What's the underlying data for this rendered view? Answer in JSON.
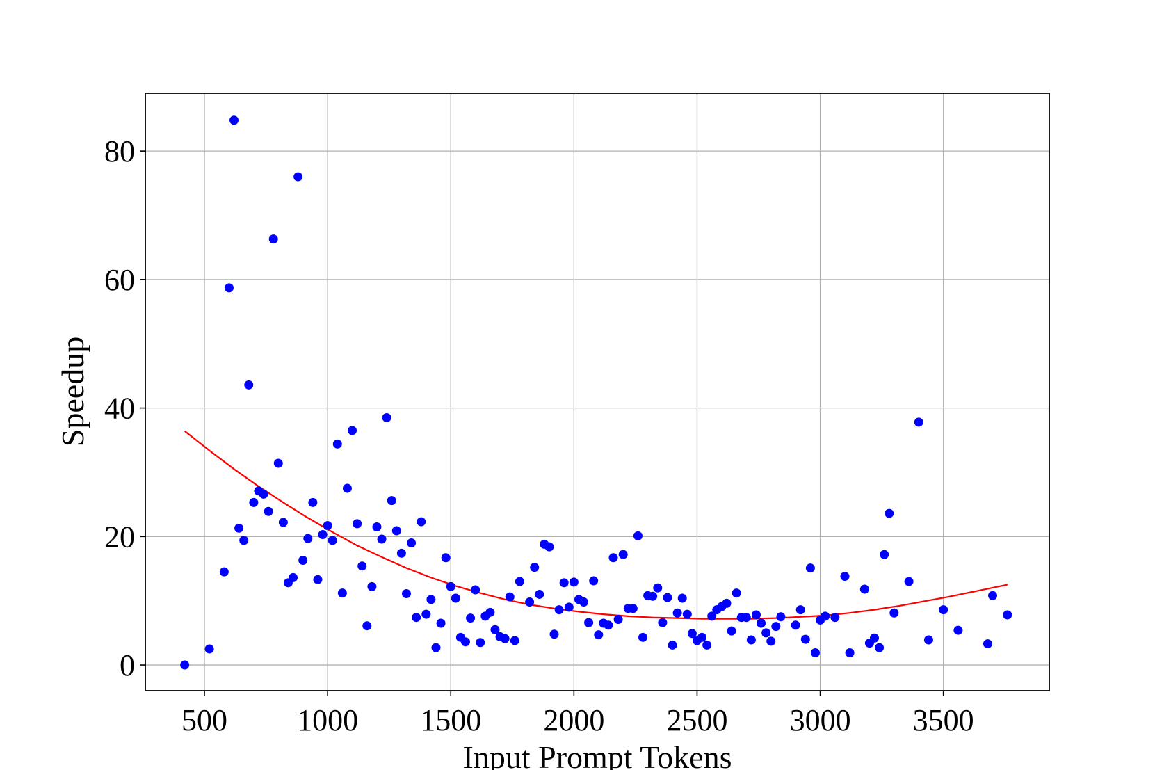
{
  "chart_data": {
    "type": "scatter",
    "xlabel": "Input Prompt Tokens",
    "ylabel": "Speedup",
    "xlim": [
      260,
      3930
    ],
    "ylim": [
      -4,
      89
    ],
    "xticks": [
      500,
      1000,
      1500,
      2000,
      2500,
      3000,
      3500
    ],
    "yticks": [
      0,
      20,
      40,
      60,
      80
    ],
    "xtick_labels": [
      "500",
      "1000",
      "1500",
      "2000",
      "2500",
      "3000",
      "3500"
    ],
    "ytick_labels": [
      "0",
      "20",
      "40",
      "60",
      "80"
    ],
    "grid": true,
    "legend": "none",
    "series": [
      {
        "type": "scatter",
        "color": "#0000ff",
        "points": [
          [
            420,
            0
          ],
          [
            520,
            2.5
          ],
          [
            580,
            14.5
          ],
          [
            600,
            58.7
          ],
          [
            620,
            84.8
          ],
          [
            640,
            21.3
          ],
          [
            660,
            19.4
          ],
          [
            680,
            43.6
          ],
          [
            700,
            25.3
          ],
          [
            720,
            27.1
          ],
          [
            740,
            26.6
          ],
          [
            760,
            23.9
          ],
          [
            780,
            66.3
          ],
          [
            800,
            31.4
          ],
          [
            820,
            22.2
          ],
          [
            840,
            12.8
          ],
          [
            860,
            13.6
          ],
          [
            880,
            76.0
          ],
          [
            900,
            16.3
          ],
          [
            920,
            19.7
          ],
          [
            940,
            25.3
          ],
          [
            960,
            13.3
          ],
          [
            980,
            20.3
          ],
          [
            1000,
            21.7
          ],
          [
            1020,
            19.4
          ],
          [
            1040,
            34.4
          ],
          [
            1060,
            11.2
          ],
          [
            1080,
            27.5
          ],
          [
            1100,
            36.5
          ],
          [
            1120,
            22.0
          ],
          [
            1140,
            15.4
          ],
          [
            1160,
            6.1
          ],
          [
            1180,
            12.2
          ],
          [
            1200,
            21.5
          ],
          [
            1220,
            19.6
          ],
          [
            1240,
            38.5
          ],
          [
            1260,
            25.6
          ],
          [
            1280,
            20.9
          ],
          [
            1300,
            17.4
          ],
          [
            1320,
            11.1
          ],
          [
            1340,
            19.0
          ],
          [
            1360,
            7.4
          ],
          [
            1380,
            22.3
          ],
          [
            1400,
            7.9
          ],
          [
            1420,
            10.2
          ],
          [
            1440,
            2.7
          ],
          [
            1460,
            6.5
          ],
          [
            1480,
            16.7
          ],
          [
            1500,
            12.2
          ],
          [
            1520,
            10.4
          ],
          [
            1540,
            4.3
          ],
          [
            1560,
            3.6
          ],
          [
            1580,
            7.3
          ],
          [
            1600,
            11.7
          ],
          [
            1620,
            3.5
          ],
          [
            1640,
            7.6
          ],
          [
            1660,
            8.2
          ],
          [
            1680,
            5.5
          ],
          [
            1700,
            4.4
          ],
          [
            1720,
            4.1
          ],
          [
            1740,
            10.6
          ],
          [
            1760,
            3.8
          ],
          [
            1780,
            13.0
          ],
          [
            1820,
            9.8
          ],
          [
            1840,
            15.2
          ],
          [
            1860,
            11.0
          ],
          [
            1880,
            18.8
          ],
          [
            1900,
            18.4
          ],
          [
            1920,
            4.8
          ],
          [
            1940,
            8.6
          ],
          [
            1960,
            12.8
          ],
          [
            1980,
            9.0
          ],
          [
            2000,
            12.9
          ],
          [
            2020,
            10.2
          ],
          [
            2040,
            9.8
          ],
          [
            2060,
            6.6
          ],
          [
            2080,
            13.1
          ],
          [
            2100,
            4.7
          ],
          [
            2120,
            6.5
          ],
          [
            2140,
            6.2
          ],
          [
            2160,
            16.7
          ],
          [
            2180,
            7.1
          ],
          [
            2200,
            17.2
          ],
          [
            2220,
            8.8
          ],
          [
            2240,
            8.8
          ],
          [
            2260,
            20.1
          ],
          [
            2280,
            4.3
          ],
          [
            2300,
            10.8
          ],
          [
            2320,
            10.7
          ],
          [
            2340,
            12.0
          ],
          [
            2360,
            6.6
          ],
          [
            2380,
            10.5
          ],
          [
            2400,
            3.1
          ],
          [
            2420,
            8.1
          ],
          [
            2440,
            10.4
          ],
          [
            2460,
            7.9
          ],
          [
            2480,
            4.9
          ],
          [
            2500,
            3.8
          ],
          [
            2520,
            4.3
          ],
          [
            2540,
            3.1
          ],
          [
            2560,
            7.6
          ],
          [
            2580,
            8.6
          ],
          [
            2600,
            9.1
          ],
          [
            2620,
            9.6
          ],
          [
            2640,
            5.3
          ],
          [
            2660,
            11.2
          ],
          [
            2680,
            7.4
          ],
          [
            2700,
            7.4
          ],
          [
            2720,
            3.9
          ],
          [
            2740,
            7.8
          ],
          [
            2760,
            6.5
          ],
          [
            2780,
            5.0
          ],
          [
            2800,
            3.7
          ],
          [
            2820,
            6.0
          ],
          [
            2840,
            7.5
          ],
          [
            2900,
            6.2
          ],
          [
            2920,
            8.6
          ],
          [
            2940,
            4.0
          ],
          [
            2960,
            15.1
          ],
          [
            2980,
            1.9
          ],
          [
            3000,
            7.0
          ],
          [
            3020,
            7.6
          ],
          [
            3060,
            7.4
          ],
          [
            3100,
            13.8
          ],
          [
            3120,
            1.9
          ],
          [
            3180,
            11.8
          ],
          [
            3200,
            3.4
          ],
          [
            3220,
            4.2
          ],
          [
            3240,
            2.7
          ],
          [
            3260,
            17.2
          ],
          [
            3280,
            23.6
          ],
          [
            3300,
            8.1
          ],
          [
            3360,
            13.0
          ],
          [
            3400,
            37.8
          ],
          [
            3440,
            3.9
          ],
          [
            3500,
            8.6
          ],
          [
            3560,
            5.4
          ],
          [
            3680,
            3.3
          ],
          [
            3700,
            10.8
          ],
          [
            3760,
            7.8
          ]
        ]
      },
      {
        "type": "line",
        "color": "#ff0000",
        "x": [
          420,
          520,
          620,
          720,
          820,
          920,
          1020,
          1120,
          1220,
          1320,
          1420,
          1520,
          1620,
          1720,
          1820,
          1920,
          2020,
          2120,
          2220,
          2320,
          2420,
          2520,
          2620,
          2720,
          2820,
          2920,
          3020,
          3120,
          3220,
          3320,
          3420,
          3520,
          3620,
          3760
        ],
        "y": [
          36.4,
          33.4,
          30.5,
          27.8,
          25.3,
          22.9,
          20.7,
          18.6,
          16.8,
          15.1,
          13.6,
          12.3,
          11.2,
          10.2,
          9.4,
          8.8,
          8.3,
          7.9,
          7.6,
          7.4,
          7.3,
          7.2,
          7.2,
          7.2,
          7.3,
          7.5,
          7.7,
          8.1,
          8.6,
          9.2,
          9.9,
          10.6,
          11.4,
          12.5
        ]
      }
    ]
  }
}
